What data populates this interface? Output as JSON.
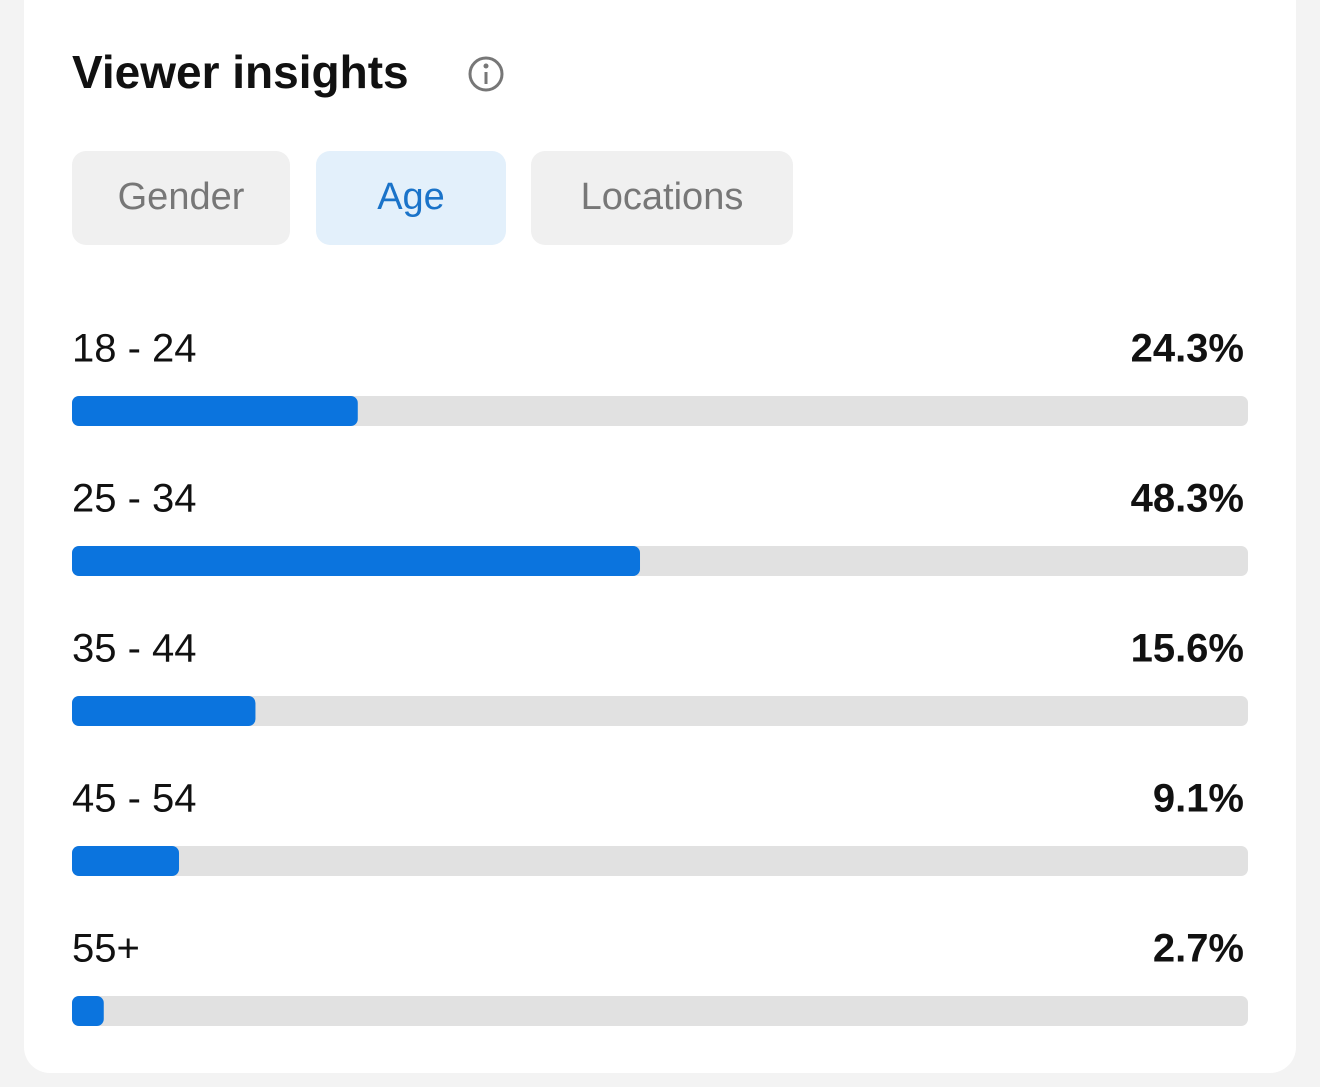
{
  "header": {
    "title": "Viewer insights"
  },
  "tabs": [
    {
      "label": "Gender",
      "selected": false
    },
    {
      "label": "Age",
      "selected": true
    },
    {
      "label": "Locations",
      "selected": false
    }
  ],
  "chart_data": {
    "type": "bar",
    "orientation": "horizontal",
    "categories": [
      "18 - 24",
      "25 - 34",
      "35 - 44",
      "45 - 54",
      "55+"
    ],
    "values": [
      24.3,
      48.3,
      15.6,
      9.1,
      2.7
    ],
    "value_labels": [
      "24.3%",
      "48.3%",
      "15.6%",
      "9.1%",
      "2.7%"
    ],
    "xlim": [
      0,
      100
    ],
    "color": "#0b74de",
    "track_color": "#e1e1e1"
  }
}
